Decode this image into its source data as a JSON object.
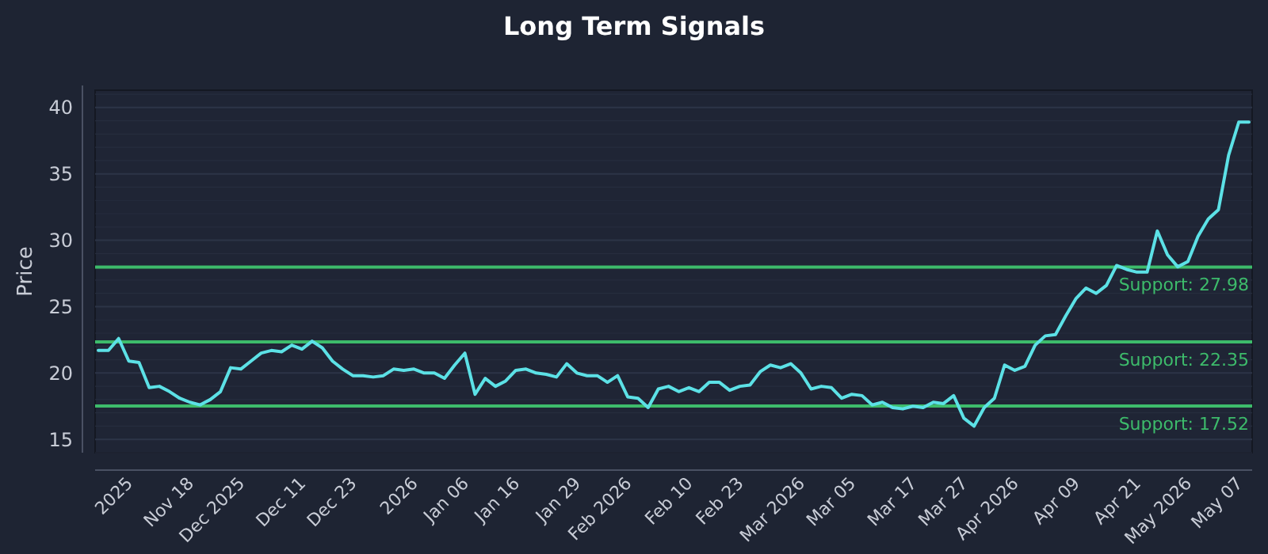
{
  "chart_data": {
    "type": "line",
    "title": "Long Term Signals",
    "ylabel": "Price",
    "categories": [
      null,
      null,
      null,
      "2025",
      null,
      null,
      null,
      null,
      null,
      "Nov 18",
      null,
      null,
      null,
      null,
      "Dec 2025",
      null,
      null,
      null,
      null,
      null,
      "Dec 11",
      null,
      null,
      null,
      null,
      "Dec 23",
      null,
      null,
      null,
      null,
      null,
      "2026",
      null,
      null,
      null,
      null,
      "Jan 06",
      null,
      null,
      null,
      null,
      "Jan 16",
      null,
      null,
      null,
      null,
      null,
      "Jan 29",
      null,
      null,
      null,
      null,
      "Feb 2026",
      null,
      null,
      null,
      null,
      null,
      "Feb 10",
      null,
      null,
      null,
      null,
      "Feb 23",
      null,
      null,
      null,
      null,
      null,
      "Mar 2026",
      null,
      null,
      null,
      null,
      "Mar 05",
      null,
      null,
      null,
      null,
      null,
      "Mar 17",
      null,
      null,
      null,
      null,
      "Mar 27",
      null,
      null,
      null,
      null,
      "Apr 2026",
      null,
      null,
      null,
      null,
      null,
      "Apr 09",
      null,
      null,
      null,
      null,
      null,
      "Apr 21",
      null,
      null,
      null,
      null,
      "May 2026",
      null,
      null,
      null,
      null,
      "May 07",
      null
    ],
    "series": [
      {
        "color": "#5ce1e6",
        "values": [
          21.7,
          21.7,
          22.6,
          20.9,
          20.8,
          18.9,
          19.0,
          18.6,
          18.1,
          17.8,
          17.6,
          18.0,
          18.6,
          20.4,
          20.3,
          20.9,
          21.5,
          21.7,
          21.6,
          22.1,
          21.8,
          22.4,
          21.9,
          20.9,
          20.3,
          19.8,
          19.8,
          19.7,
          19.8,
          20.3,
          20.2,
          20.3,
          20.0,
          20.0,
          19.6,
          20.6,
          21.5,
          18.4,
          19.6,
          19.0,
          19.4,
          20.2,
          20.3,
          20.0,
          19.9,
          19.7,
          20.7,
          20.0,
          19.8,
          19.8,
          19.3,
          19.8,
          18.2,
          18.1,
          17.4,
          18.8,
          19.0,
          18.6,
          18.9,
          18.6,
          19.3,
          19.3,
          18.7,
          19.0,
          19.1,
          20.1,
          20.6,
          20.4,
          20.7,
          20.0,
          18.8,
          19.0,
          18.9,
          18.1,
          18.4,
          18.3,
          17.6,
          17.8,
          17.4,
          17.3,
          17.5,
          17.4,
          17.8,
          17.7,
          18.3,
          16.6,
          16.0,
          17.4,
          18.1,
          20.6,
          20.2,
          20.5,
          22.1,
          22.8,
          22.9,
          24.3,
          25.6,
          26.4,
          26.0,
          26.6,
          28.1,
          27.8,
          27.6,
          27.6,
          30.7,
          28.9,
          28.0,
          28.4,
          30.3,
          31.6,
          32.3,
          36.4,
          38.9,
          38.9
        ]
      }
    ],
    "ylim": [
      14,
      41.3
    ],
    "yticks": [
      15,
      20,
      25,
      30,
      35,
      40
    ],
    "grid": "y",
    "marker": "none",
    "line_style": "solid",
    "ref_lines": [
      {
        "axis": "y",
        "value": 27.98,
        "label": "Support: 27.98",
        "color": "#3dbb6b"
      },
      {
        "axis": "y",
        "value": 22.35,
        "label": "Support: 22.35",
        "color": "#3dbb6b"
      },
      {
        "axis": "y",
        "value": 17.52,
        "label": "Support: 17.52",
        "color": "#3dbb6b"
      }
    ]
  }
}
